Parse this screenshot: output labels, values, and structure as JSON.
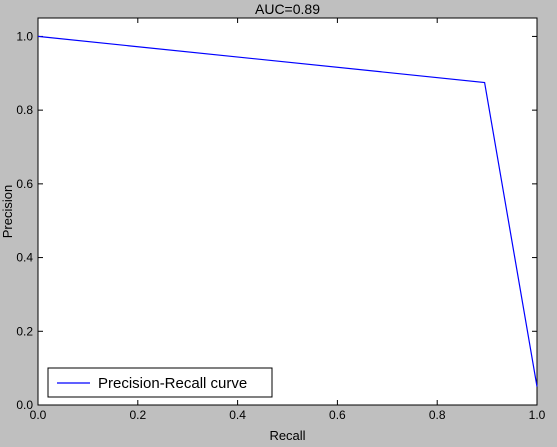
{
  "chart_data": {
    "type": "line",
    "title": "AUC=0.89",
    "xlabel": "Recall",
    "ylabel": "Precision",
    "xlim": [
      0.0,
      1.0
    ],
    "ylim": [
      0.0,
      1.05
    ],
    "xticks": [
      "0.0",
      "0.2",
      "0.4",
      "0.6",
      "0.8",
      "1.0"
    ],
    "yticks": [
      "0.0",
      "0.2",
      "0.4",
      "0.6",
      "0.8",
      "1.0"
    ],
    "grid": false,
    "legend": {
      "position": "lower-left",
      "entries": [
        "Precision-Recall curve"
      ]
    },
    "series": [
      {
        "name": "Precision-Recall curve",
        "color": "#0000ff",
        "x": [
          0.0,
          0.895,
          1.0
        ],
        "y": [
          1.0,
          0.875,
          0.05
        ]
      }
    ]
  }
}
